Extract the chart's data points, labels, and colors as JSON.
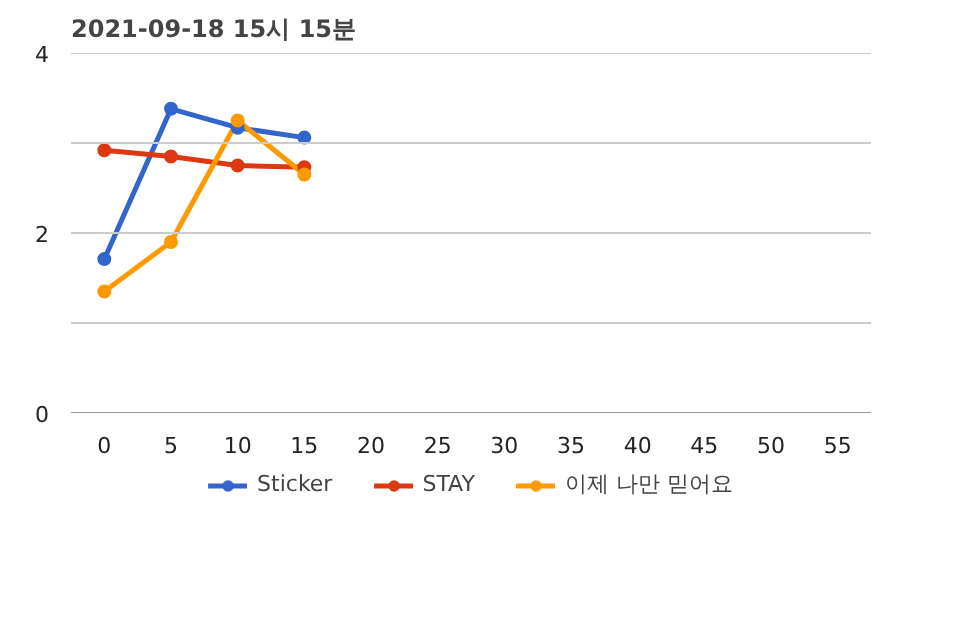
{
  "chart_data": {
    "type": "line",
    "title": "2021-09-18 15시 15분",
    "x": [
      0,
      5,
      10,
      15
    ],
    "series": [
      {
        "name": "Sticker",
        "color": "#3366cc",
        "values": [
          1.71,
          3.38,
          3.17,
          3.06
        ]
      },
      {
        "name": "STAY",
        "color": "#dc3912",
        "values": [
          2.92,
          2.85,
          2.75,
          2.73
        ]
      },
      {
        "name": "이제 나만 믿어요",
        "color": "#ff9900",
        "values": [
          1.35,
          1.9,
          3.25,
          2.65
        ]
      }
    ],
    "xlim": [
      -2.5,
      57.5
    ],
    "xticks": [
      0,
      5,
      10,
      15,
      20,
      25,
      30,
      35,
      40,
      45,
      50,
      55
    ],
    "ylim": [
      0,
      4
    ],
    "yticks": [
      0,
      {
        "value": 1,
        "label": null
      },
      2,
      {
        "value": 3,
        "label": null
      },
      4
    ],
    "grid": "y",
    "legend": "bottom",
    "marker": "circle",
    "line_style": "solid"
  }
}
